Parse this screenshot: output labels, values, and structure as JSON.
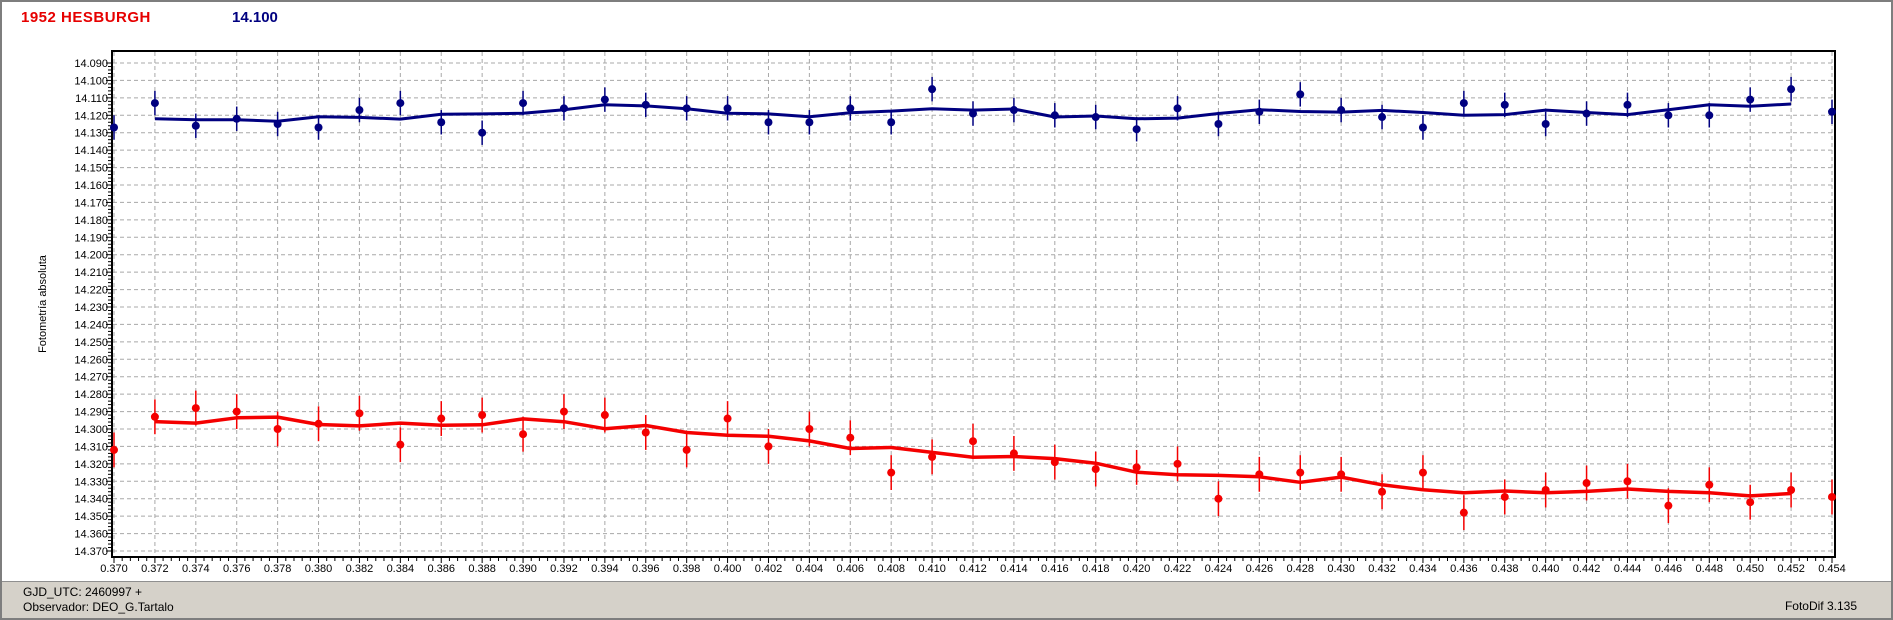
{
  "header": {
    "object_title": "1952 HESBURGH",
    "object_title_color": "#e60000",
    "reference_value": "14.100",
    "reference_value_color": "#000080"
  },
  "status_bar": {
    "line1": "GJD_UTC: 2460997 +",
    "line2": "Observador: DEO_G.Tartalo",
    "right_text": "FotoDif 3.135",
    "background": "#d5d1c9"
  },
  "chart_data": {
    "type": "scatter",
    "title": "",
    "xlabel": "",
    "ylabel": "Fotometría absoluta",
    "x_axis": {
      "min": 0.37,
      "max": 0.454,
      "tick_step": 0.002,
      "minor_ticks_per_interval": 4
    },
    "y_axis": {
      "min": 14.09,
      "max": 14.37,
      "tick_step": 0.01,
      "inverted": true,
      "minor_ticks_per_interval": 4
    },
    "grid": {
      "shown": true,
      "style": "dashed",
      "color": "#a8a8a8"
    },
    "legend": "none",
    "trend_line": "5-point moving average drawn through each series",
    "x": [
      0.37,
      0.372,
      0.374,
      0.376,
      0.378,
      0.38,
      0.382,
      0.384,
      0.386,
      0.388,
      0.39,
      0.392,
      0.394,
      0.396,
      0.398,
      0.4,
      0.402,
      0.404,
      0.406,
      0.408,
      0.41,
      0.412,
      0.414,
      0.416,
      0.418,
      0.42,
      0.422,
      0.424,
      0.426,
      0.428,
      0.43,
      0.432,
      0.434,
      0.436,
      0.438,
      0.44,
      0.442,
      0.444,
      0.446,
      0.448,
      0.45,
      0.452,
      0.454
    ],
    "series": [
      {
        "name": "navy-series",
        "color": "#000080",
        "marker": "dot",
        "error_bar": 0.007,
        "values": [
          14.127,
          14.113,
          14.126,
          14.122,
          14.125,
          14.127,
          14.117,
          14.113,
          14.124,
          14.13,
          14.113,
          14.116,
          14.111,
          14.114,
          14.116,
          14.116,
          14.124,
          14.124,
          14.116,
          14.124,
          14.105,
          14.119,
          14.117,
          14.12,
          14.121,
          14.128,
          14.116,
          14.125,
          14.118,
          14.108,
          14.117,
          14.121,
          14.127,
          14.113,
          14.114,
          14.125,
          14.119,
          14.114,
          14.12,
          14.12,
          14.111,
          14.105,
          14.118
        ]
      },
      {
        "name": "red-series",
        "color": "#f40000",
        "marker": "dot",
        "error_bar": 0.01,
        "values": [
          14.312,
          14.293,
          14.288,
          14.29,
          14.3,
          14.297,
          14.291,
          14.309,
          14.294,
          14.292,
          14.303,
          14.29,
          14.292,
          14.302,
          14.312,
          14.294,
          14.31,
          14.3,
          14.305,
          14.325,
          14.316,
          14.307,
          14.314,
          14.319,
          14.323,
          14.322,
          14.32,
          14.34,
          14.326,
          14.325,
          14.326,
          14.336,
          14.325,
          14.348,
          14.339,
          14.335,
          14.331,
          14.33,
          14.344,
          14.332,
          14.342,
          14.335,
          14.339
        ]
      }
    ]
  }
}
